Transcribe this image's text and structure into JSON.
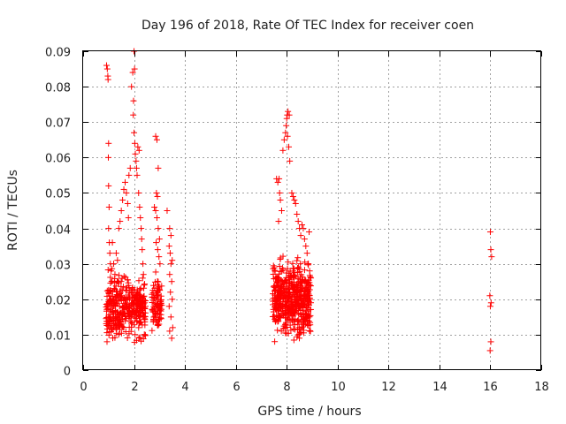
{
  "chart_data": {
    "type": "scatter",
    "title": "Day 196 of 2018, Rate Of TEC Index for receiver coen",
    "xlabel": "GPS time / hours",
    "ylabel": "ROTI / TECUs",
    "xlim": [
      0,
      18
    ],
    "ylim": [
      0,
      0.09
    ],
    "xticks": [
      "0",
      "2",
      "4",
      "6",
      "8",
      "10",
      "12",
      "14",
      "16",
      "18"
    ],
    "yticks": [
      "0",
      "0.01",
      "0.02",
      "0.03",
      "0.04",
      "0.05",
      "0.06",
      "0.07",
      "0.08",
      "0.09"
    ],
    "grid": true,
    "marker": "+",
    "color": "#ff0000",
    "series": [
      {
        "name": "ROTI",
        "points": [
          [
            0.92,
            0.086
          ],
          [
            0.95,
            0.085
          ],
          [
            0.97,
            0.083
          ],
          [
            0.98,
            0.082
          ],
          [
            1.0,
            0.064
          ],
          [
            0.99,
            0.06
          ],
          [
            1.0,
            0.052
          ],
          [
            1.02,
            0.046
          ],
          [
            1.0,
            0.04
          ],
          [
            1.03,
            0.036
          ],
          [
            1.05,
            0.033
          ],
          [
            1.07,
            0.03
          ],
          [
            1.1,
            0.028
          ],
          [
            1.12,
            0.025
          ],
          [
            1.15,
            0.036
          ],
          [
            1.2,
            0.03
          ],
          [
            1.25,
            0.027
          ],
          [
            1.3,
            0.033
          ],
          [
            1.35,
            0.031
          ],
          [
            1.4,
            0.04
          ],
          [
            1.45,
            0.042
          ],
          [
            1.5,
            0.045
          ],
          [
            1.55,
            0.048
          ],
          [
            1.6,
            0.051
          ],
          [
            1.65,
            0.053
          ],
          [
            1.7,
            0.05
          ],
          [
            1.75,
            0.047
          ],
          [
            1.78,
            0.043
          ],
          [
            1.8,
            0.055
          ],
          [
            1.85,
            0.057
          ],
          [
            1.9,
            0.08
          ],
          [
            1.95,
            0.084
          ],
          [
            2.0,
            0.09
          ],
          [
            2.02,
            0.085
          ],
          [
            1.98,
            0.076
          ],
          [
            1.97,
            0.072
          ],
          [
            2.0,
            0.067
          ],
          [
            2.03,
            0.064
          ],
          [
            2.05,
            0.061
          ],
          [
            2.08,
            0.059
          ],
          [
            2.1,
            0.057
          ],
          [
            2.12,
            0.055
          ],
          [
            2.15,
            0.063
          ],
          [
            2.2,
            0.062
          ],
          [
            2.18,
            0.05
          ],
          [
            2.22,
            0.046
          ],
          [
            2.25,
            0.043
          ],
          [
            2.28,
            0.04
          ],
          [
            2.3,
            0.037
          ],
          [
            2.32,
            0.034
          ],
          [
            2.35,
            0.03
          ],
          [
            2.37,
            0.027
          ],
          [
            2.4,
            0.024
          ],
          [
            2.85,
            0.066
          ],
          [
            2.9,
            0.065
          ],
          [
            2.95,
            0.057
          ],
          [
            2.88,
            0.05
          ],
          [
            2.92,
            0.049
          ],
          [
            2.8,
            0.046
          ],
          [
            2.85,
            0.045
          ],
          [
            2.9,
            0.043
          ],
          [
            2.95,
            0.04
          ],
          [
            3.0,
            0.037
          ],
          [
            2.87,
            0.036
          ],
          [
            2.93,
            0.034
          ],
          [
            2.98,
            0.032
          ],
          [
            3.02,
            0.03
          ],
          [
            3.3,
            0.045
          ],
          [
            3.4,
            0.04
          ],
          [
            3.45,
            0.038
          ],
          [
            3.38,
            0.035
          ],
          [
            3.42,
            0.033
          ],
          [
            3.5,
            0.031
          ],
          [
            3.45,
            0.03
          ],
          [
            3.4,
            0.027
          ],
          [
            3.48,
            0.025
          ],
          [
            3.43,
            0.022
          ],
          [
            3.5,
            0.02
          ],
          [
            3.38,
            0.018
          ],
          [
            3.45,
            0.015
          ],
          [
            3.52,
            0.012
          ],
          [
            3.4,
            0.011
          ],
          [
            3.48,
            0.009
          ],
          [
            7.6,
            0.054
          ],
          [
            7.65,
            0.053
          ],
          [
            7.7,
            0.054
          ],
          [
            7.75,
            0.048
          ],
          [
            7.8,
            0.045
          ],
          [
            7.68,
            0.042
          ],
          [
            7.72,
            0.05
          ],
          [
            7.85,
            0.062
          ],
          [
            7.9,
            0.065
          ],
          [
            7.95,
            0.067
          ],
          [
            7.98,
            0.069
          ],
          [
            8.0,
            0.071
          ],
          [
            8.02,
            0.072
          ],
          [
            8.05,
            0.073
          ],
          [
            8.1,
            0.072
          ],
          [
            8.03,
            0.066
          ],
          [
            8.08,
            0.063
          ],
          [
            8.12,
            0.059
          ],
          [
            8.2,
            0.05
          ],
          [
            8.25,
            0.049
          ],
          [
            8.3,
            0.048
          ],
          [
            8.35,
            0.047
          ],
          [
            8.4,
            0.044
          ],
          [
            8.45,
            0.042
          ],
          [
            8.5,
            0.04
          ],
          [
            8.55,
            0.038
          ],
          [
            8.6,
            0.041
          ],
          [
            8.65,
            0.04
          ],
          [
            8.7,
            0.037
          ],
          [
            8.75,
            0.035
          ],
          [
            8.8,
            0.033
          ],
          [
            8.85,
            0.03
          ],
          [
            8.9,
            0.028
          ],
          [
            8.95,
            0.026
          ],
          [
            8.88,
            0.039
          ],
          [
            16.0,
            0.039
          ],
          [
            16.02,
            0.034
          ],
          [
            16.05,
            0.032
          ],
          [
            15.98,
            0.021
          ],
          [
            16.03,
            0.019
          ],
          [
            16.0,
            0.018
          ],
          [
            16.02,
            0.008
          ],
          [
            15.99,
            0.0055
          ]
        ],
        "clusters": [
          {
            "x_range": [
              0.9,
              2.45
            ],
            "y_range": [
              0.005,
              0.03
            ],
            "count": 380
          },
          {
            "x_range": [
              2.7,
              3.1
            ],
            "y_range": [
              0.008,
              0.03
            ],
            "count": 90
          },
          {
            "x_range": [
              7.45,
              8.95
            ],
            "y_range": [
              0.006,
              0.034
            ],
            "count": 520
          }
        ]
      }
    ]
  }
}
